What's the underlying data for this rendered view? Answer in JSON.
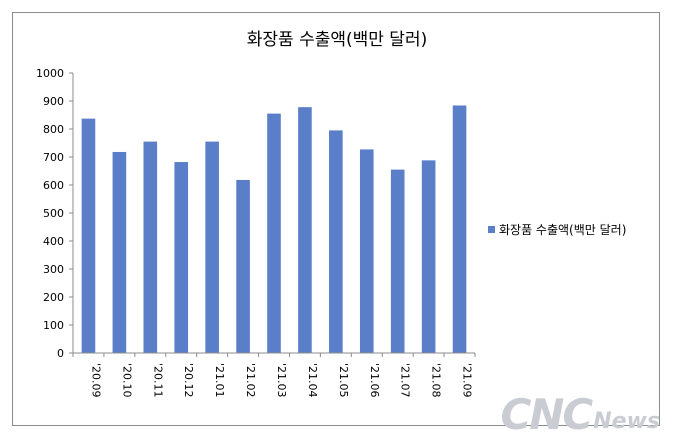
{
  "chart_data": {
    "type": "bar",
    "title": "화장품 수출액(백만 달러)",
    "categories": [
      "'20.09",
      "'20.10",
      "'20.11",
      "'20.12",
      "'21.01",
      "'21.02",
      "'21.03",
      "'21.04",
      "'21.05",
      "'21.06",
      "'21.07",
      "'21.08",
      "'21.09"
    ],
    "series": [
      {
        "name": "화장품 수출액(백만 달러)",
        "values": [
          837,
          718,
          755,
          682,
          755,
          618,
          855,
          878,
          795,
          727,
          655,
          688,
          884
        ]
      }
    ],
    "y_ticks": [
      "0",
      "100",
      "200",
      "300",
      "400",
      "500",
      "600",
      "700",
      "800",
      "900",
      "1000"
    ],
    "ylim": [
      0,
      1000
    ],
    "grid": false,
    "legend_position": "right",
    "bar_color": "#5b7ec9",
    "axis_color": "#8c8c8c"
  },
  "watermark": {
    "main": "CNC",
    "sub": "News"
  }
}
